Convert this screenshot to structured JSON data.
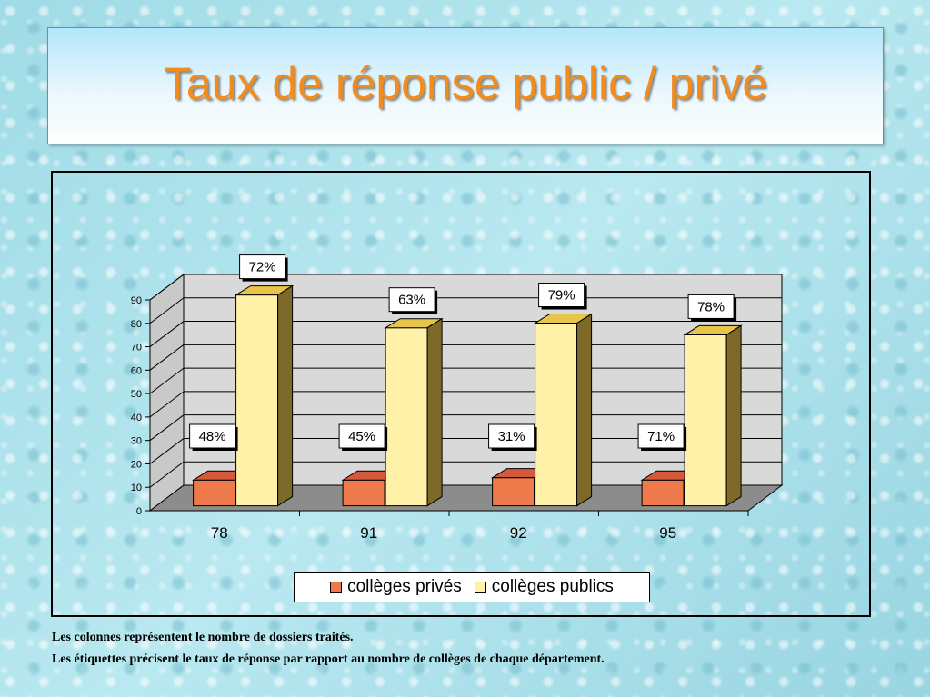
{
  "slide": {
    "title": "Taux de réponse public / privé",
    "footnotes": [
      "Les colonnes représentent le nombre de dossiers traités.",
      "Les étiquettes précisent le taux de réponse par rapport au nombre de collèges de chaque département."
    ]
  },
  "colors": {
    "title": "#f28c1f",
    "prive_front": "#ee7a4c",
    "prive_top": "#d4583a",
    "prive_side": "#a8441f",
    "public_front": "#fff2a8",
    "public_top": "#e7c44a",
    "public_side": "#7d6a28",
    "wall": "#d9d9d9",
    "floor": "#8c8c8c"
  },
  "chart_data": {
    "type": "bar",
    "categories": [
      "78",
      "91",
      "92",
      "95"
    ],
    "series": [
      {
        "name": "collèges privés",
        "values": [
          11,
          11,
          12,
          11
        ],
        "labels": [
          "48%",
          "45%",
          "31%",
          "71%"
        ]
      },
      {
        "name": "collèges publics",
        "values": [
          90,
          76,
          78,
          73
        ],
        "labels": [
          "72%",
          "63%",
          "79%",
          "78%"
        ]
      }
    ],
    "ylim": [
      0,
      90
    ],
    "yticks": [
      "0",
      "10",
      "20",
      "30",
      "40",
      "50",
      "60",
      "70",
      "80",
      "90"
    ],
    "grid": true,
    "legend": "bottom",
    "title": "",
    "xlabel": "",
    "ylabel": ""
  }
}
